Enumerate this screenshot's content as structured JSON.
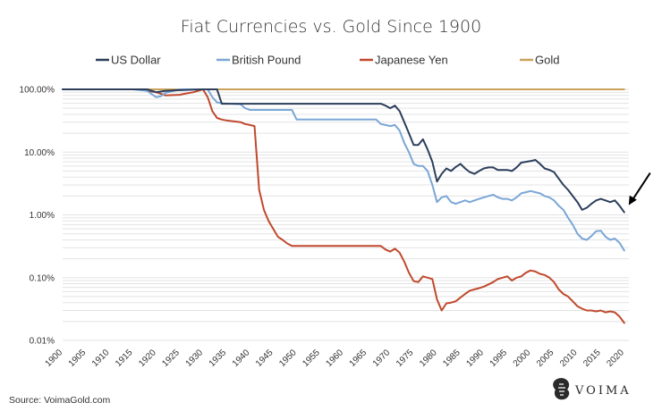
{
  "chart_data": {
    "type": "line",
    "title": "Fiat Currencies vs. Gold Since 1900",
    "y_scale": "log",
    "ylim": [
      0.0001,
      1.0
    ],
    "xlim": [
      1900,
      2021
    ],
    "grid": true,
    "legend_placement": "top",
    "y_ticks": [
      {
        "value": 1.0,
        "label": "100.00%"
      },
      {
        "value": 0.1,
        "label": "10.00%"
      },
      {
        "value": 0.01,
        "label": "1.00%"
      },
      {
        "value": 0.001,
        "label": "0.10%"
      },
      {
        "value": 0.0001,
        "label": "0.01%"
      }
    ],
    "x_ticks": [
      "1900",
      "1905",
      "1910",
      "1915",
      "1920",
      "1925",
      "1930",
      "1935",
      "1940",
      "1945",
      "1950",
      "1955",
      "1960",
      "1965",
      "1970",
      "1975",
      "1980",
      "1985",
      "1990",
      "1995",
      "2000",
      "2005",
      "2010",
      "2015",
      "2020"
    ],
    "series": [
      {
        "name": "US Dollar",
        "color": "#2c3e5b",
        "points": [
          [
            1900,
            1.0
          ],
          [
            1915,
            1.0
          ],
          [
            1918,
            1.0
          ],
          [
            1920,
            0.9
          ],
          [
            1922,
            0.95
          ],
          [
            1925,
            0.97
          ],
          [
            1930,
            1.0
          ],
          [
            1933,
            1.0
          ],
          [
            1934,
            0.59
          ],
          [
            1940,
            0.59
          ],
          [
            1960,
            0.59
          ],
          [
            1968,
            0.59
          ],
          [
            1969,
            0.55
          ],
          [
            1970,
            0.5
          ],
          [
            1971,
            0.55
          ],
          [
            1972,
            0.45
          ],
          [
            1973,
            0.3
          ],
          [
            1974,
            0.2
          ],
          [
            1975,
            0.13
          ],
          [
            1976,
            0.13
          ],
          [
            1977,
            0.16
          ],
          [
            1978,
            0.11
          ],
          [
            1979,
            0.07
          ],
          [
            1980,
            0.034
          ],
          [
            1981,
            0.045
          ],
          [
            1982,
            0.055
          ],
          [
            1983,
            0.05
          ],
          [
            1984,
            0.058
          ],
          [
            1985,
            0.065
          ],
          [
            1986,
            0.055
          ],
          [
            1987,
            0.048
          ],
          [
            1988,
            0.045
          ],
          [
            1989,
            0.05
          ],
          [
            1990,
            0.055
          ],
          [
            1991,
            0.057
          ],
          [
            1992,
            0.057
          ],
          [
            1993,
            0.052
          ],
          [
            1994,
            0.052
          ],
          [
            1995,
            0.052
          ],
          [
            1996,
            0.05
          ],
          [
            1997,
            0.057
          ],
          [
            1998,
            0.068
          ],
          [
            1999,
            0.07
          ],
          [
            2000,
            0.072
          ],
          [
            2001,
            0.075
          ],
          [
            2002,
            0.065
          ],
          [
            2003,
            0.055
          ],
          [
            2004,
            0.052
          ],
          [
            2005,
            0.048
          ],
          [
            2006,
            0.038
          ],
          [
            2007,
            0.03
          ],
          [
            2008,
            0.025
          ],
          [
            2009,
            0.02
          ],
          [
            2010,
            0.016
          ],
          [
            2011,
            0.012
          ],
          [
            2012,
            0.013
          ],
          [
            2013,
            0.015
          ],
          [
            2014,
            0.017
          ],
          [
            2015,
            0.018
          ],
          [
            2016,
            0.017
          ],
          [
            2017,
            0.016
          ],
          [
            2018,
            0.017
          ],
          [
            2019,
            0.014
          ],
          [
            2020,
            0.011
          ]
        ]
      },
      {
        "name": "British Pound",
        "color": "#7aa6d6",
        "points": [
          [
            1900,
            1.0
          ],
          [
            1915,
            1.0
          ],
          [
            1918,
            0.95
          ],
          [
            1920,
            0.75
          ],
          [
            1921,
            0.78
          ],
          [
            1922,
            0.88
          ],
          [
            1925,
            1.0
          ],
          [
            1931,
            1.0
          ],
          [
            1932,
            0.75
          ],
          [
            1933,
            0.62
          ],
          [
            1934,
            0.6
          ],
          [
            1938,
            0.58
          ],
          [
            1939,
            0.5
          ],
          [
            1940,
            0.47
          ],
          [
            1949,
            0.47
          ],
          [
            1950,
            0.33
          ],
          [
            1955,
            0.33
          ],
          [
            1960,
            0.33
          ],
          [
            1967,
            0.33
          ],
          [
            1968,
            0.28
          ],
          [
            1969,
            0.27
          ],
          [
            1970,
            0.26
          ],
          [
            1971,
            0.27
          ],
          [
            1972,
            0.22
          ],
          [
            1973,
            0.14
          ],
          [
            1974,
            0.1
          ],
          [
            1975,
            0.065
          ],
          [
            1976,
            0.06
          ],
          [
            1977,
            0.06
          ],
          [
            1978,
            0.05
          ],
          [
            1979,
            0.03
          ],
          [
            1980,
            0.016
          ],
          [
            1981,
            0.019
          ],
          [
            1982,
            0.02
          ],
          [
            1983,
            0.016
          ],
          [
            1984,
            0.015
          ],
          [
            1985,
            0.016
          ],
          [
            1986,
            0.017
          ],
          [
            1987,
            0.016
          ],
          [
            1988,
            0.017
          ],
          [
            1989,
            0.018
          ],
          [
            1990,
            0.019
          ],
          [
            1991,
            0.02
          ],
          [
            1992,
            0.021
          ],
          [
            1993,
            0.019
          ],
          [
            1994,
            0.018
          ],
          [
            1995,
            0.018
          ],
          [
            1996,
            0.017
          ],
          [
            1997,
            0.019
          ],
          [
            1998,
            0.022
          ],
          [
            1999,
            0.023
          ],
          [
            2000,
            0.024
          ],
          [
            2001,
            0.023
          ],
          [
            2002,
            0.022
          ],
          [
            2003,
            0.02
          ],
          [
            2004,
            0.019
          ],
          [
            2005,
            0.017
          ],
          [
            2006,
            0.014
          ],
          [
            2007,
            0.012
          ],
          [
            2008,
            0.009
          ],
          [
            2009,
            0.007
          ],
          [
            2010,
            0.005
          ],
          [
            2011,
            0.0042
          ],
          [
            2012,
            0.004
          ],
          [
            2013,
            0.0046
          ],
          [
            2014,
            0.0055
          ],
          [
            2015,
            0.0056
          ],
          [
            2016,
            0.0045
          ],
          [
            2017,
            0.004
          ],
          [
            2018,
            0.0042
          ],
          [
            2019,
            0.0036
          ],
          [
            2020,
            0.0027
          ]
        ]
      },
      {
        "name": "Japanese Yen",
        "color": "#c0492e",
        "points": [
          [
            1900,
            1.0
          ],
          [
            1915,
            1.0
          ],
          [
            1917,
            1.0
          ],
          [
            1918,
            0.95
          ],
          [
            1920,
            0.9
          ],
          [
            1921,
            0.85
          ],
          [
            1922,
            0.8
          ],
          [
            1925,
            0.82
          ],
          [
            1926,
            0.85
          ],
          [
            1928,
            0.9
          ],
          [
            1929,
            0.95
          ],
          [
            1930,
            1.0
          ],
          [
            1931,
            0.75
          ],
          [
            1932,
            0.45
          ],
          [
            1933,
            0.35
          ],
          [
            1934,
            0.33
          ],
          [
            1935,
            0.32
          ],
          [
            1938,
            0.3
          ],
          [
            1939,
            0.28
          ],
          [
            1940,
            0.27
          ],
          [
            1941,
            0.26
          ],
          [
            1942,
            0.025
          ],
          [
            1943,
            0.012
          ],
          [
            1944,
            0.008
          ],
          [
            1945,
            0.006
          ],
          [
            1946,
            0.0045
          ],
          [
            1947,
            0.004
          ],
          [
            1948,
            0.0035
          ],
          [
            1949,
            0.0032
          ],
          [
            1950,
            0.0032
          ],
          [
            1960,
            0.0032
          ],
          [
            1968,
            0.0032
          ],
          [
            1969,
            0.0028
          ],
          [
            1970,
            0.0026
          ],
          [
            1971,
            0.0029
          ],
          [
            1972,
            0.0025
          ],
          [
            1973,
            0.0018
          ],
          [
            1974,
            0.0012
          ],
          [
            1975,
            0.00088
          ],
          [
            1976,
            0.00085
          ],
          [
            1977,
            0.00105
          ],
          [
            1978,
            0.001
          ],
          [
            1979,
            0.00095
          ],
          [
            1980,
            0.00045
          ],
          [
            1981,
            0.0003
          ],
          [
            1982,
            0.00039
          ],
          [
            1983,
            0.0004
          ],
          [
            1984,
            0.00042
          ],
          [
            1985,
            0.00048
          ],
          [
            1986,
            0.00055
          ],
          [
            1987,
            0.00062
          ],
          [
            1988,
            0.00065
          ],
          [
            1989,
            0.00068
          ],
          [
            1990,
            0.00072
          ],
          [
            1991,
            0.00078
          ],
          [
            1992,
            0.00085
          ],
          [
            1993,
            0.00095
          ],
          [
            1994,
            0.001
          ],
          [
            1995,
            0.00105
          ],
          [
            1996,
            0.0009
          ],
          [
            1997,
            0.001
          ],
          [
            1998,
            0.00105
          ],
          [
            1999,
            0.0012
          ],
          [
            2000,
            0.0013
          ],
          [
            2001,
            0.00125
          ],
          [
            2002,
            0.00115
          ],
          [
            2003,
            0.0011
          ],
          [
            2004,
            0.001
          ],
          [
            2005,
            0.00085
          ],
          [
            2006,
            0.00065
          ],
          [
            2007,
            0.00055
          ],
          [
            2008,
            0.0005
          ],
          [
            2009,
            0.00042
          ],
          [
            2010,
            0.00035
          ],
          [
            2011,
            0.00032
          ],
          [
            2012,
            0.0003
          ],
          [
            2013,
            0.0003
          ],
          [
            2014,
            0.00029
          ],
          [
            2015,
            0.0003
          ],
          [
            2016,
            0.00028
          ],
          [
            2017,
            0.00029
          ],
          [
            2018,
            0.00028
          ],
          [
            2019,
            0.00024
          ],
          [
            2020,
            0.00019
          ]
        ]
      },
      {
        "name": "Gold",
        "color": "#c9a25a",
        "points": [
          [
            1900,
            1.0
          ],
          [
            2020,
            1.0
          ]
        ]
      }
    ],
    "annotations": [
      {
        "type": "arrow",
        "points_to": {
          "x": 2020,
          "y": 0.011
        },
        "color": "#000000"
      }
    ]
  },
  "footer": {
    "source": "Source: VoimaGold.com",
    "brand": "VOIMA",
    "logo_icon": "voima-lion-icon"
  }
}
